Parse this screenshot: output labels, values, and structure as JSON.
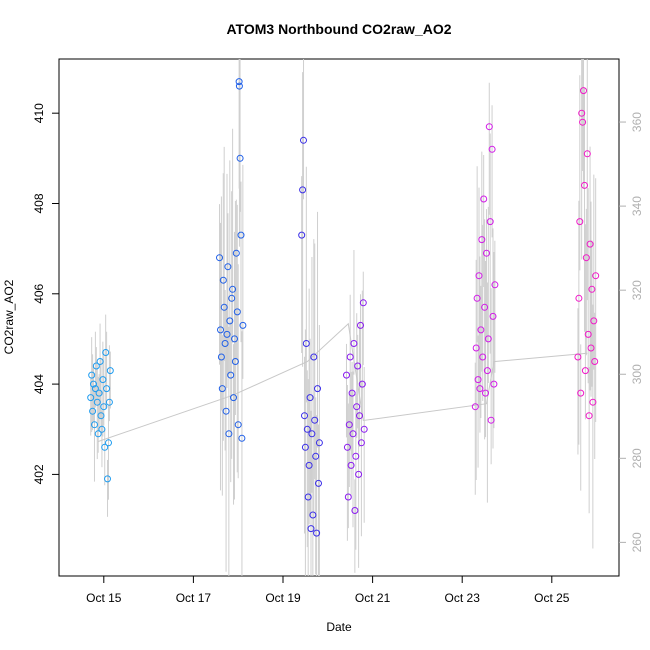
{
  "chart_data": {
    "type": "scatter",
    "title": "ATOM3 Northbound CO2raw_AO2",
    "xlabel": "Date",
    "ylabel": "CO2raw_AO2",
    "xlim": [
      "2023-10-14T00:00",
      "2023-10-26T12:00"
    ],
    "ylim": [
      399.75,
      411.2
    ],
    "ylim_right": [
      252,
      375
    ],
    "x_ticks": [
      {
        "date": "2023-10-15",
        "label": "Oct 15"
      },
      {
        "date": "2023-10-17",
        "label": "Oct 17"
      },
      {
        "date": "2023-10-19",
        "label": "Oct 19"
      },
      {
        "date": "2023-10-21",
        "label": "Oct 21"
      },
      {
        "date": "2023-10-23",
        "label": "Oct 23"
      },
      {
        "date": "2023-10-25",
        "label": "Oct 25"
      }
    ],
    "y_ticks_left": [
      402,
      404,
      406,
      408,
      410
    ],
    "y_ticks_right": [
      260,
      280,
      300,
      320,
      340,
      360
    ],
    "grid": false,
    "series": [
      {
        "color": "#1e9cf0",
        "points": [
          [
            "2023-10-14T17:00",
            403.7
          ],
          [
            "2023-10-14T17:30",
            404.2
          ],
          [
            "2023-10-14T18:00",
            403.4
          ],
          [
            "2023-10-14T18:30",
            404.0
          ],
          [
            "2023-10-14T19:00",
            403.1
          ],
          [
            "2023-10-14T19:30",
            403.9
          ],
          [
            "2023-10-14T20:00",
            404.4
          ],
          [
            "2023-10-14T20:30",
            403.6
          ],
          [
            "2023-10-14T21:00",
            402.9
          ],
          [
            "2023-10-14T21:30",
            403.8
          ],
          [
            "2023-10-14T22:00",
            404.5
          ],
          [
            "2023-10-14T22:30",
            403.3
          ],
          [
            "2023-10-14T23:00",
            403.0
          ],
          [
            "2023-10-14T23:30",
            404.1
          ],
          [
            "2023-10-15T00:00",
            403.5
          ],
          [
            "2023-10-15T00:30",
            402.6
          ],
          [
            "2023-10-15T01:00",
            404.7
          ],
          [
            "2023-10-15T01:30",
            403.9
          ],
          [
            "2023-10-15T02:00",
            401.9
          ],
          [
            "2023-10-15T02:30",
            402.7
          ],
          [
            "2023-10-15T03:00",
            403.6
          ],
          [
            "2023-10-15T03:30",
            404.3
          ]
        ]
      },
      {
        "color": "#2060e8",
        "points": [
          [
            "2023-10-17T14:00",
            406.8
          ],
          [
            "2023-10-17T14:30",
            405.2
          ],
          [
            "2023-10-17T15:00",
            404.6
          ],
          [
            "2023-10-17T15:30",
            403.9
          ],
          [
            "2023-10-17T16:00",
            406.3
          ],
          [
            "2023-10-17T16:30",
            405.7
          ],
          [
            "2023-10-17T17:00",
            404.9
          ],
          [
            "2023-10-17T17:30",
            403.4
          ],
          [
            "2023-10-17T18:00",
            405.1
          ],
          [
            "2023-10-17T18:30",
            406.6
          ],
          [
            "2023-10-17T19:00",
            402.9
          ],
          [
            "2023-10-17T19:30",
            405.4
          ],
          [
            "2023-10-17T20:00",
            404.2
          ],
          [
            "2023-10-17T20:30",
            405.9
          ],
          [
            "2023-10-17T21:00",
            406.1
          ],
          [
            "2023-10-17T21:30",
            403.7
          ],
          [
            "2023-10-17T22:00",
            405.0
          ],
          [
            "2023-10-17T22:30",
            404.5
          ],
          [
            "2023-10-17T23:00",
            406.9
          ],
          [
            "2023-10-17T23:30",
            405.6
          ],
          [
            "2023-10-18T00:00",
            403.1
          ],
          [
            "2023-10-18T00:30",
            410.7
          ],
          [
            "2023-10-18T00:40",
            410.6
          ],
          [
            "2023-10-18T01:00",
            409.0
          ],
          [
            "2023-10-18T01:30",
            407.3
          ],
          [
            "2023-10-18T02:00",
            402.8
          ],
          [
            "2023-10-18T02:30",
            405.3
          ]
        ]
      },
      {
        "color": "#3a2ee8",
        "points": [
          [
            "2023-10-19T10:00",
            407.3
          ],
          [
            "2023-10-19T10:30",
            408.3
          ],
          [
            "2023-10-19T11:00",
            409.4
          ],
          [
            "2023-10-19T11:30",
            403.3
          ],
          [
            "2023-10-19T12:00",
            402.6
          ],
          [
            "2023-10-19T12:30",
            404.9
          ],
          [
            "2023-10-19T13:00",
            403.0
          ],
          [
            "2023-10-19T13:30",
            401.5
          ],
          [
            "2023-10-19T14:00",
            402.2
          ],
          [
            "2023-10-19T14:30",
            403.7
          ],
          [
            "2023-10-19T15:00",
            400.8
          ],
          [
            "2023-10-19T15:30",
            402.9
          ],
          [
            "2023-10-19T16:00",
            401.1
          ],
          [
            "2023-10-19T16:30",
            404.6
          ],
          [
            "2023-10-19T17:00",
            403.2
          ],
          [
            "2023-10-19T17:30",
            402.4
          ],
          [
            "2023-10-19T18:00",
            400.7
          ],
          [
            "2023-10-19T18:30",
            403.9
          ],
          [
            "2023-10-19T19:00",
            401.8
          ],
          [
            "2023-10-19T19:30",
            402.7
          ]
        ]
      },
      {
        "color": "#8a1af0",
        "points": [
          [
            "2023-10-20T10:00",
            404.2
          ],
          [
            "2023-10-20T10:30",
            402.6
          ],
          [
            "2023-10-20T11:00",
            401.5
          ],
          [
            "2023-10-20T11:30",
            403.1
          ],
          [
            "2023-10-20T12:00",
            404.6
          ],
          [
            "2023-10-20T12:30",
            402.2
          ],
          [
            "2023-10-20T13:00",
            403.8
          ],
          [
            "2023-10-20T13:30",
            402.9
          ],
          [
            "2023-10-20T14:00",
            404.9
          ],
          [
            "2023-10-20T14:30",
            401.2
          ],
          [
            "2023-10-20T15:00",
            402.4
          ],
          [
            "2023-10-20T15:30",
            403.5
          ],
          [
            "2023-10-20T16:00",
            404.4
          ],
          [
            "2023-10-20T16:30",
            402.0
          ],
          [
            "2023-10-20T17:00",
            403.3
          ],
          [
            "2023-10-20T17:30",
            405.3
          ],
          [
            "2023-10-20T18:00",
            402.7
          ],
          [
            "2023-10-20T18:30",
            404.0
          ],
          [
            "2023-10-20T19:00",
            405.8
          ],
          [
            "2023-10-20T19:30",
            403.0
          ]
        ]
      },
      {
        "color": "#d21be8",
        "points": [
          [
            "2023-10-23T07:00",
            403.5
          ],
          [
            "2023-10-23T07:30",
            404.8
          ],
          [
            "2023-10-23T08:00",
            405.9
          ],
          [
            "2023-10-23T08:30",
            404.1
          ],
          [
            "2023-10-23T09:00",
            406.4
          ],
          [
            "2023-10-23T09:30",
            403.9
          ],
          [
            "2023-10-23T10:00",
            405.2
          ],
          [
            "2023-10-23T10:30",
            407.2
          ],
          [
            "2023-10-23T11:00",
            404.6
          ],
          [
            "2023-10-23T11:30",
            408.1
          ],
          [
            "2023-10-23T12:00",
            405.7
          ],
          [
            "2023-10-23T12:30",
            403.8
          ],
          [
            "2023-10-23T13:00",
            406.9
          ],
          [
            "2023-10-23T13:30",
            404.3
          ],
          [
            "2023-10-23T14:00",
            405.0
          ],
          [
            "2023-10-23T14:30",
            409.7
          ],
          [
            "2023-10-23T15:00",
            407.6
          ],
          [
            "2023-10-23T15:30",
            403.2
          ],
          [
            "2023-10-23T16:00",
            409.2
          ],
          [
            "2023-10-23T16:30",
            405.5
          ],
          [
            "2023-10-23T17:00",
            404.0
          ],
          [
            "2023-10-23T17:30",
            406.2
          ]
        ]
      },
      {
        "color": "#f01ac8",
        "points": [
          [
            "2023-10-25T14:00",
            404.6
          ],
          [
            "2023-10-25T14:30",
            405.9
          ],
          [
            "2023-10-25T15:00",
            407.6
          ],
          [
            "2023-10-25T15:30",
            403.8
          ],
          [
            "2023-10-25T16:00",
            410.0
          ],
          [
            "2023-10-25T16:30",
            409.8
          ],
          [
            "2023-10-25T17:00",
            410.5
          ],
          [
            "2023-10-25T17:30",
            408.4
          ],
          [
            "2023-10-25T18:00",
            404.3
          ],
          [
            "2023-10-25T18:30",
            406.8
          ],
          [
            "2023-10-25T19:00",
            409.1
          ],
          [
            "2023-10-25T19:30",
            405.1
          ],
          [
            "2023-10-25T20:00",
            403.3
          ],
          [
            "2023-10-25T20:30",
            407.1
          ],
          [
            "2023-10-25T21:00",
            404.8
          ],
          [
            "2023-10-25T21:30",
            406.1
          ],
          [
            "2023-10-25T22:00",
            403.6
          ],
          [
            "2023-10-25T22:30",
            405.4
          ],
          [
            "2023-10-25T23:00",
            404.5
          ],
          [
            "2023-10-25T23:30",
            406.4
          ]
        ]
      }
    ],
    "secondary_line": {
      "axis": "right",
      "color": "#c8c8c8",
      "points": [
        [
          "2023-10-14T21:00",
          284
        ],
        [
          "2023-10-17T21:00",
          295
        ],
        [
          "2023-10-19T13:00",
          303
        ],
        [
          "2023-10-20T11:00",
          312
        ],
        [
          "2023-10-20T19:00",
          289
        ],
        [
          "2023-10-23T13:00",
          293
        ],
        [
          "2023-10-23T17:00",
          303
        ],
        [
          "2023-10-25T19:00",
          305
        ]
      ]
    }
  }
}
